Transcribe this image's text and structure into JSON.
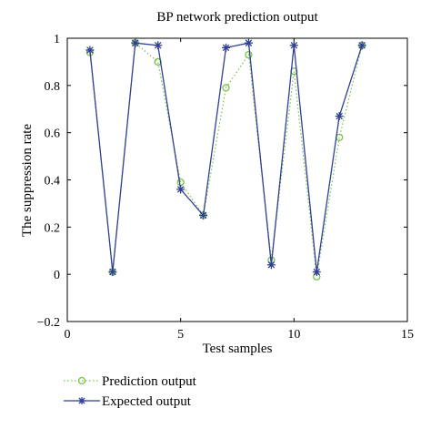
{
  "chart_data": {
    "type": "line",
    "title": "BP network prediction output",
    "xlabel": "Test samples",
    "ylabel": "The suppression rate",
    "xlim": [
      0,
      15
    ],
    "ylim": [
      -0.2,
      1
    ],
    "x_ticks": [
      0,
      5,
      10,
      15
    ],
    "y_ticks": [
      -0.2,
      0,
      0.2,
      0.4,
      0.6,
      0.8,
      1
    ],
    "x_tick_labels": [
      "0",
      "5",
      "10",
      "15"
    ],
    "y_tick_labels": [
      "−0.2",
      "0",
      "0.2",
      "0.4",
      "0.6",
      "0.8",
      "1"
    ],
    "grid": false,
    "legend_position": "bottom-left-outside",
    "x": [
      1,
      2,
      3,
      4,
      5,
      6,
      7,
      8,
      9,
      10,
      11,
      12,
      13
    ],
    "series": [
      {
        "name": "Prediction output",
        "values": [
          0.94,
          0.01,
          0.98,
          0.9,
          0.39,
          0.25,
          0.79,
          0.93,
          0.06,
          0.86,
          -0.01,
          0.58,
          0.97
        ],
        "color": "#7ac143",
        "line_style": "dotted",
        "marker": "circle"
      },
      {
        "name": "Expected output",
        "values": [
          0.95,
          0.01,
          0.98,
          0.97,
          0.36,
          0.25,
          0.96,
          0.98,
          0.04,
          0.97,
          0.01,
          0.67,
          0.97
        ],
        "color": "#2e3f94",
        "line_style": "solid",
        "marker": "star"
      }
    ]
  }
}
